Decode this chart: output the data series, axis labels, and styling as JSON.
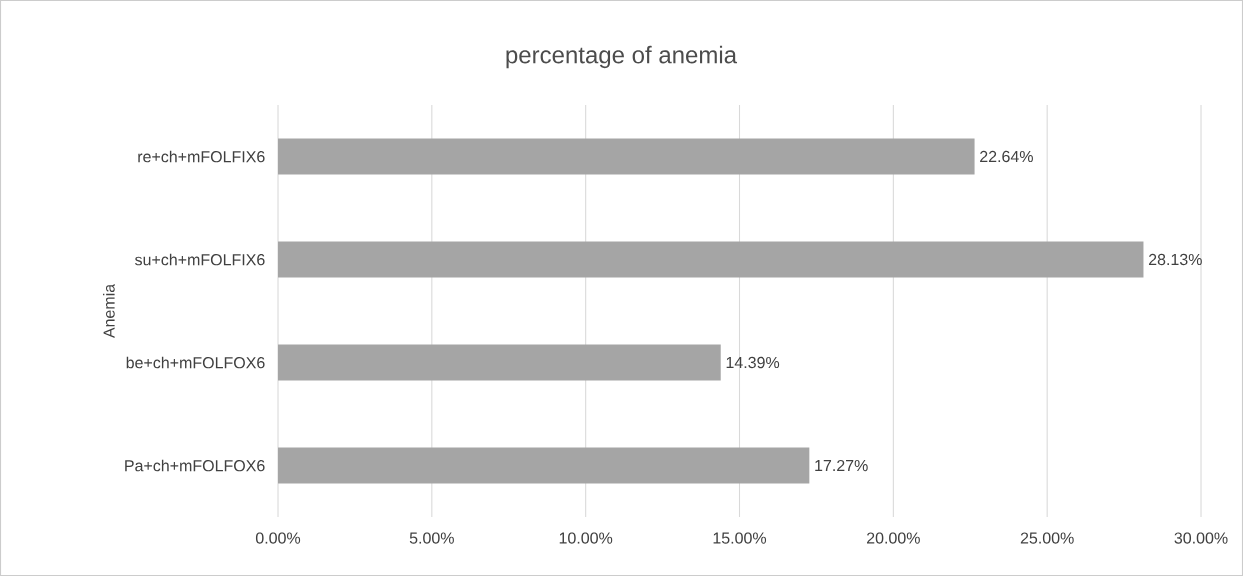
{
  "chart_data": {
    "type": "bar",
    "orientation": "horizontal",
    "title": "percentage of anemia",
    "ylabel": "Anemia",
    "categories": [
      "re+ch+mFOLFIX6",
      "su+ch+mFOLFIX6",
      "be+ch+mFOLFOX6",
      "Pa+ch+mFOLFOX6"
    ],
    "values": [
      22.64,
      28.13,
      14.39,
      17.27
    ],
    "value_labels": [
      "22.64%",
      "28.13%",
      "14.39%",
      "17.27%"
    ],
    "color": "#a5a5a5",
    "xlim": [
      0,
      30
    ],
    "xticks": [
      {
        "value": 0,
        "label": "0.00%"
      },
      {
        "value": 5,
        "label": "5.00%"
      },
      {
        "value": 10,
        "label": "10.00%"
      },
      {
        "value": 15,
        "label": "15.00%"
      },
      {
        "value": 20,
        "label": "20.00%"
      },
      {
        "value": 25,
        "label": "25.00%"
      },
      {
        "value": 30,
        "label": "30.00%"
      }
    ],
    "grid": "x"
  }
}
